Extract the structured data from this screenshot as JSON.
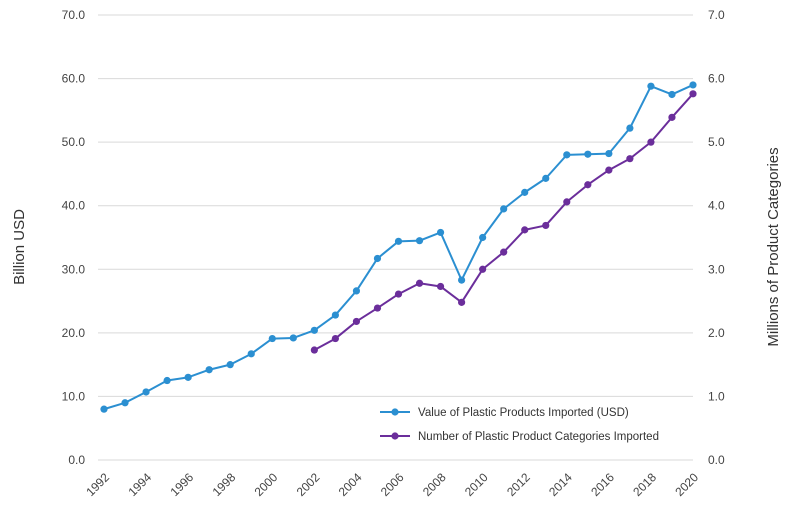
{
  "chart_data": {
    "type": "line",
    "x": [
      1992,
      1993,
      1994,
      1995,
      1996,
      1997,
      1998,
      1999,
      2000,
      2001,
      2002,
      2003,
      2004,
      2005,
      2006,
      2007,
      2008,
      2009,
      2010,
      2011,
      2012,
      2013,
      2014,
      2015,
      2016,
      2017,
      2018,
      2019,
      2020
    ],
    "x_tick_labels": [
      "1992",
      "1994",
      "1996",
      "1998",
      "2000",
      "2002",
      "2004",
      "2006",
      "2008",
      "2010",
      "2012",
      "2014",
      "2016",
      "2018",
      "2020"
    ],
    "ylabel": "Billion USD",
    "y2label": "Millions of Product Categories",
    "ylim": [
      0,
      70
    ],
    "y2lim": [
      0,
      7
    ],
    "y_tick_labels": [
      "0.0",
      "10.0",
      "20.0",
      "30.0",
      "40.0",
      "50.0",
      "60.0",
      "70.0"
    ],
    "y2_tick_labels": [
      "0.0",
      "1.0",
      "2.0",
      "3.0",
      "4.0",
      "5.0",
      "6.0",
      "7.0"
    ],
    "grid": true,
    "legend_position": "bottom-right",
    "series": [
      {
        "name": "Value of Plastic Products Imported (USD)",
        "axis": "left",
        "color": "#2b8fd1",
        "x": [
          1992,
          1993,
          1994,
          1995,
          1996,
          1997,
          1998,
          1999,
          2000,
          2001,
          2002,
          2003,
          2004,
          2005,
          2006,
          2007,
          2008,
          2009,
          2010,
          2011,
          2012,
          2013,
          2014,
          2015,
          2016,
          2017,
          2018,
          2019,
          2020
        ],
        "values": [
          8.0,
          9.0,
          10.7,
          12.5,
          13.0,
          14.2,
          15.0,
          16.7,
          19.1,
          19.2,
          20.4,
          22.8,
          26.6,
          31.7,
          34.4,
          34.5,
          35.8,
          28.3,
          35.0,
          39.5,
          42.1,
          44.3,
          48.0,
          48.1,
          48.2,
          52.2,
          58.8,
          57.5,
          59.0
        ]
      },
      {
        "name": "Number of Plastic Product Categories Imported",
        "axis": "right",
        "color": "#6b2e9b",
        "x": [
          2002,
          2003,
          2004,
          2005,
          2006,
          2007,
          2008,
          2009,
          2010,
          2011,
          2012,
          2013,
          2014,
          2015,
          2016,
          2017,
          2018,
          2019,
          2020
        ],
        "values": [
          1.73,
          1.91,
          2.18,
          2.39,
          2.61,
          2.78,
          2.73,
          2.48,
          3.0,
          3.27,
          3.62,
          3.69,
          4.06,
          4.33,
          4.56,
          4.74,
          5.0,
          5.39,
          5.76
        ]
      }
    ]
  }
}
